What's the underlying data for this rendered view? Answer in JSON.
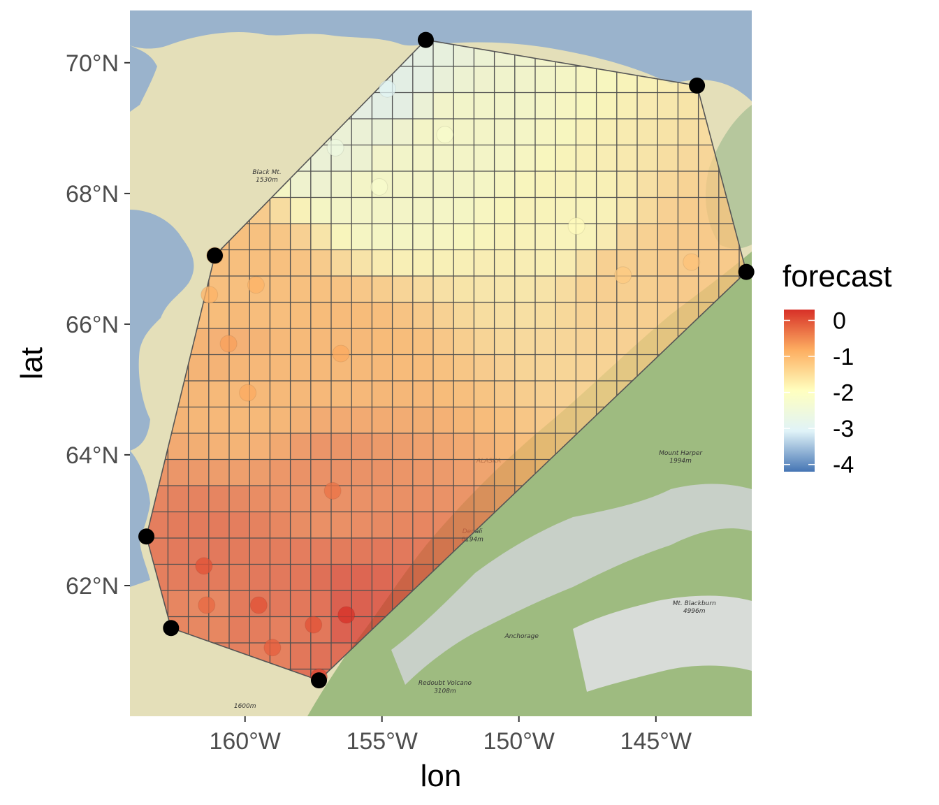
{
  "chart_data": {
    "type": "map",
    "title": "",
    "xlabel": "lon",
    "ylabel": "lat",
    "x_range": [
      -164.2,
      -141.5
    ],
    "y_range": [
      60.0,
      70.8
    ],
    "x_ticks": [
      {
        "value": -160,
        "label": "160°W"
      },
      {
        "value": -155,
        "label": "155°W"
      },
      {
        "value": -150,
        "label": "150°W"
      },
      {
        "value": -145,
        "label": "145°W"
      }
    ],
    "y_ticks": [
      {
        "value": 62,
        "label": "62°N"
      },
      {
        "value": 64,
        "label": "64°N"
      },
      {
        "value": 66,
        "label": "66°N"
      },
      {
        "value": 68,
        "label": "68°N"
      },
      {
        "value": 70,
        "label": "70°N"
      }
    ],
    "legend": {
      "title": "forecast",
      "placement": "right",
      "min": -4.2,
      "max": 0.3,
      "ticks": [
        {
          "value": 0,
          "label": "0"
        },
        {
          "value": -1,
          "label": "-1"
        },
        {
          "value": -2,
          "label": "-2"
        },
        {
          "value": -3,
          "label": "-3"
        },
        {
          "value": -4,
          "label": "-4"
        }
      ],
      "palette": [
        "#4575b4",
        "#e0f3f8",
        "#ffffbf",
        "#fdae61",
        "#d73027"
      ]
    },
    "hull_vertices": [
      {
        "lon": -153.4,
        "lat": 70.35
      },
      {
        "lon": -143.5,
        "lat": 69.65
      },
      {
        "lon": -141.7,
        "lat": 66.8
      },
      {
        "lon": -157.3,
        "lat": 60.55
      },
      {
        "lon": -162.7,
        "lat": 61.35
      },
      {
        "lon": -163.6,
        "lat": 62.75
      },
      {
        "lon": -161.1,
        "lat": 67.05
      }
    ],
    "stations": [
      {
        "lon": -154.8,
        "lat": 69.6,
        "forecast": -3.0
      },
      {
        "lon": -152.7,
        "lat": 68.9,
        "forecast": -2.2
      },
      {
        "lon": -156.7,
        "lat": 68.7,
        "forecast": -2.6
      },
      {
        "lon": -155.1,
        "lat": 68.1,
        "forecast": -2.2
      },
      {
        "lon": -147.9,
        "lat": 67.5,
        "forecast": -1.9
      },
      {
        "lon": -161.1,
        "lat": 67.05,
        "forecast": -0.9
      },
      {
        "lon": -146.2,
        "lat": 66.75,
        "forecast": -1.2
      },
      {
        "lon": -143.7,
        "lat": 66.95,
        "forecast": -1.1
      },
      {
        "lon": -159.6,
        "lat": 66.6,
        "forecast": -0.9
      },
      {
        "lon": -161.3,
        "lat": 66.45,
        "forecast": -0.9
      },
      {
        "lon": -160.6,
        "lat": 65.7,
        "forecast": -0.7
      },
      {
        "lon": -156.5,
        "lat": 65.55,
        "forecast": -0.8
      },
      {
        "lon": -159.9,
        "lat": 64.95,
        "forecast": -0.8
      },
      {
        "lon": -156.8,
        "lat": 63.45,
        "forecast": -0.3
      },
      {
        "lon": -161.5,
        "lat": 62.3,
        "forecast": 0.0
      },
      {
        "lon": -161.4,
        "lat": 61.7,
        "forecast": -0.2
      },
      {
        "lon": -159.5,
        "lat": 61.7,
        "forecast": 0.0
      },
      {
        "lon": -157.5,
        "lat": 61.4,
        "forecast": 0.0
      },
      {
        "lon": -156.3,
        "lat": 61.55,
        "forecast": 0.3
      },
      {
        "lon": -159.0,
        "lat": 61.05,
        "forecast": -0.1
      },
      {
        "lon": -157.3,
        "lat": 60.6,
        "forecast": 0.1
      }
    ],
    "hull_points": [
      {
        "lon": -153.4,
        "lat": 70.35
      },
      {
        "lon": -143.5,
        "lat": 69.65
      },
      {
        "lon": -141.7,
        "lat": 66.8
      },
      {
        "lon": -161.1,
        "lat": 67.05
      },
      {
        "lon": -163.6,
        "lat": 62.75
      },
      {
        "lon": -162.7,
        "lat": 61.35
      },
      {
        "lon": -157.3,
        "lat": 60.55
      }
    ],
    "map_labels": [
      {
        "lon": -159.2,
        "lat": 68.3,
        "text": "Black Mt."
      },
      {
        "lon": -159.2,
        "lat": 68.18,
        "text": "1530m"
      },
      {
        "lon": -144.1,
        "lat": 64.0,
        "text": "Mount Harper"
      },
      {
        "lon": -144.1,
        "lat": 63.88,
        "text": "1994m"
      },
      {
        "lon": -151.7,
        "lat": 62.8,
        "text": "Denali"
      },
      {
        "lon": -151.7,
        "lat": 62.68,
        "text": "6194m"
      },
      {
        "lon": -149.9,
        "lat": 61.2,
        "text": "Anchorage"
      },
      {
        "lon": -152.7,
        "lat": 60.48,
        "text": "Redoubt Volcano"
      },
      {
        "lon": -152.7,
        "lat": 60.36,
        "text": "3108m"
      },
      {
        "lon": -143.6,
        "lat": 61.7,
        "text": "Mt. Blackburn"
      },
      {
        "lon": -143.6,
        "lat": 61.58,
        "text": "4996m"
      },
      {
        "lon": -160.0,
        "lat": 60.13,
        "text": "1600m"
      },
      {
        "lon": -151.1,
        "lat": 63.88,
        "text": "ALASKA"
      }
    ]
  }
}
